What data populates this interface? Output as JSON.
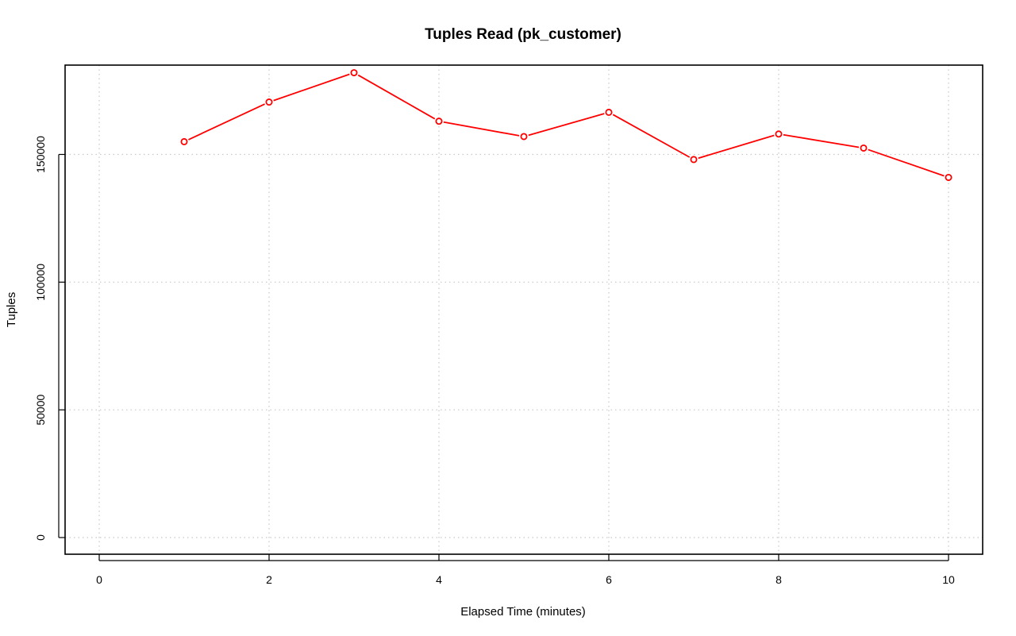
{
  "chart_data": {
    "type": "line",
    "title": "Tuples Read (pk_customer)",
    "xlabel": "Elapsed Time (minutes)",
    "ylabel": "Tuples",
    "xlim": [
      0,
      10
    ],
    "ylim": [
      0,
      180000
    ],
    "x_ticks": [
      0,
      2,
      4,
      6,
      8,
      10
    ],
    "y_ticks": [
      0,
      50000,
      100000,
      150000
    ],
    "grid": true,
    "series": [
      {
        "color": "#ff0000",
        "marker": "open-circle",
        "x": [
          1,
          2,
          3,
          4,
          5,
          6,
          7,
          8,
          9,
          10
        ],
        "y": [
          155000,
          170500,
          182000,
          163000,
          157000,
          166500,
          148000,
          158000,
          152500,
          141000
        ]
      }
    ]
  }
}
